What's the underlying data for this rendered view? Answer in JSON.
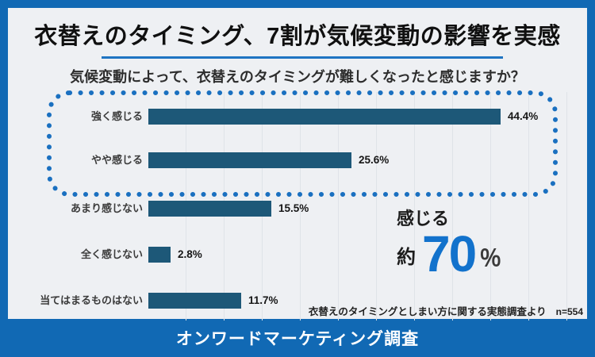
{
  "header": {
    "title": "衣替えのタイミング、7割が気候変動の影響を実感",
    "subtitle": "気候変動によって、衣替えのタイミングが難しくなったと感じますか？"
  },
  "chart_data": {
    "type": "bar",
    "orientation": "horizontal",
    "title": "気候変動によって、衣替えのタイミングが難しくなったと感じますか？",
    "categories": [
      "強く感じる",
      "やや感じる",
      "あまり感じない",
      "全く感じない",
      "当てはまるものはない"
    ],
    "values": [
      44.4,
      25.6,
      15.5,
      2.8,
      11.7
    ],
    "value_labels": [
      "44.4%",
      "25.6%",
      "15.5%",
      "2.8%",
      "11.7%"
    ],
    "unit": "percent",
    "xlim": [
      0,
      50
    ],
    "grid": true,
    "bar_color": "#1d5878",
    "highlight_group": {
      "categories": [
        "強く感じる",
        "やや感じる"
      ],
      "style": "blue dotted rounded frame"
    }
  },
  "callout": {
    "label": "感じる",
    "prefix": "約",
    "number": "70",
    "suffix": "％",
    "number_color": "#1272cc"
  },
  "source": {
    "note": "衣替えのタイミングとしまい方に関する実態調査より",
    "sample": "n=554"
  },
  "footer": {
    "label": "オンワードマーケティング調査"
  },
  "colors": {
    "frame": "#1169b4",
    "card_bg": "#eef0f3",
    "accent": "#1a70c0",
    "bar": "#1d5878",
    "big_number": "#1272cc"
  }
}
